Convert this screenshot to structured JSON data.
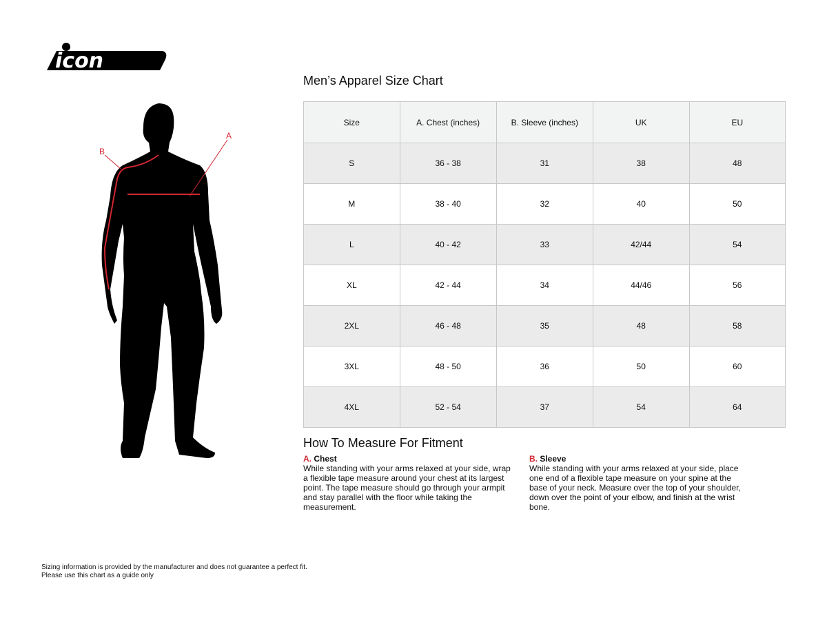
{
  "brand": {
    "logo_text": "icon",
    "accent_color": "#d22630"
  },
  "figure": {
    "label_a": "A",
    "label_b": "B"
  },
  "chart": {
    "title": "Men’s Apparel Size Chart",
    "headers": [
      "Size",
      "A. Chest (inches)",
      "B. Sleeve (inches)",
      "UK",
      "EU"
    ],
    "rows": [
      [
        "S",
        "36 - 38",
        "31",
        "38",
        "48"
      ],
      [
        "M",
        "38 - 40",
        "32",
        "40",
        "50"
      ],
      [
        "L",
        "40 - 42",
        "33",
        "42/44",
        "54"
      ],
      [
        "XL",
        "42 - 44",
        "34",
        "44/46",
        "56"
      ],
      [
        "2XL",
        "46 - 48",
        "35",
        "48",
        "58"
      ],
      [
        "3XL",
        "48 - 50",
        "36",
        "50",
        "60"
      ],
      [
        "4XL",
        "52 - 54",
        "37",
        "54",
        "64"
      ]
    ]
  },
  "howto": {
    "title": "How To Measure For Fitment",
    "chest": {
      "letter": "A.",
      "heading": "Chest",
      "text": "While standing with your arms relaxed at your side, wrap a flexible tape measure around your chest at its largest point. The tape measure should go through your armpit and stay parallel with the floor while taking the measurement."
    },
    "sleeve": {
      "letter": "B.",
      "heading": "Sleeve",
      "text": "While standing with your arms relaxed at your side, place one end of a flexible tape measure on your spine at the base of your neck. Measure over the top of your shoulder, down over the point of your elbow, and finish at the wrist bone."
    }
  },
  "disclaimer": {
    "line1": "Sizing information is provided by the manufacturer and does not guarantee a perfect fit.",
    "line2": "Please use this chart as a guide only"
  }
}
